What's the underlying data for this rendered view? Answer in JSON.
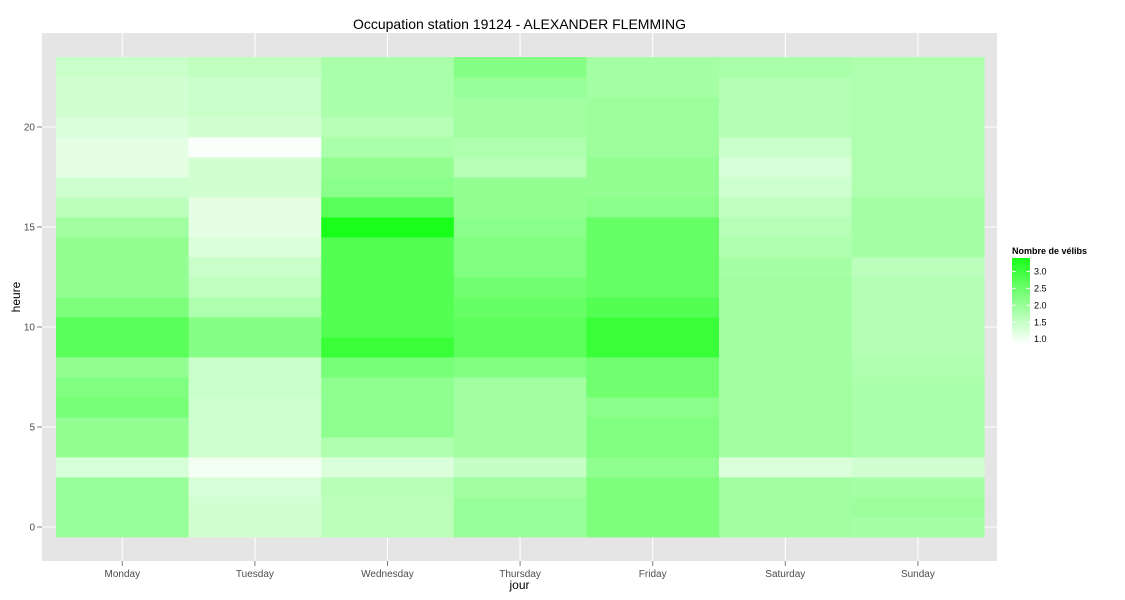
{
  "chart_data": {
    "type": "heatmap",
    "title": "Occupation station 19124 - ALEXANDER FLEMMING",
    "xlabel": "jour",
    "ylabel": "heure",
    "x_categories": [
      "Monday",
      "Tuesday",
      "Wednesday",
      "Thursday",
      "Friday",
      "Saturday",
      "Sunday"
    ],
    "y_hours": [
      0,
      1,
      2,
      3,
      4,
      5,
      6,
      7,
      8,
      9,
      10,
      11,
      12,
      13,
      14,
      15,
      16,
      17,
      18,
      19,
      20,
      21,
      22,
      23
    ],
    "y_ticks": [
      0,
      5,
      10,
      15,
      20
    ],
    "ylim": [
      -0.5,
      23.5
    ],
    "grid": true,
    "color_scale": {
      "low": "#ffffff",
      "high": "#1aff1a",
      "min": 0.85,
      "max": 3.4
    },
    "legend": {
      "title": "Nombre de vélibs",
      "position": "right",
      "ticks": [
        1.0,
        1.5,
        2.0,
        2.5,
        3.0
      ],
      "tick_labels": [
        "1.0",
        "1.5",
        "2.0",
        "2.5",
        "3.0"
      ]
    },
    "values": [
      [
        2.0,
        1.35,
        1.6,
        2.0,
        2.3,
        1.9,
        1.85
      ],
      [
        2.0,
        1.35,
        1.6,
        2.0,
        2.3,
        1.9,
        1.95
      ],
      [
        2.0,
        1.3,
        1.65,
        1.9,
        2.3,
        1.9,
        1.85
      ],
      [
        1.3,
        1.0,
        1.25,
        1.5,
        2.1,
        1.25,
        1.35
      ],
      [
        2.05,
        1.4,
        1.75,
        1.9,
        2.25,
        1.9,
        1.8
      ],
      [
        2.05,
        1.4,
        2.1,
        1.9,
        2.25,
        1.9,
        1.8
      ],
      [
        2.35,
        1.4,
        2.1,
        1.9,
        2.15,
        1.9,
        1.8
      ],
      [
        2.25,
        1.45,
        2.1,
        1.9,
        2.45,
        1.9,
        1.8
      ],
      [
        2.05,
        1.45,
        2.35,
        2.25,
        2.45,
        1.9,
        1.75
      ],
      [
        2.7,
        2.2,
        3.05,
        2.65,
        3.05,
        1.9,
        1.7
      ],
      [
        2.7,
        2.2,
        2.75,
        2.65,
        3.05,
        1.9,
        1.7
      ],
      [
        2.3,
        1.75,
        2.75,
        2.55,
        2.75,
        1.9,
        1.7
      ],
      [
        2.05,
        1.55,
        2.75,
        2.45,
        2.55,
        1.9,
        1.7
      ],
      [
        2.05,
        1.45,
        2.75,
        2.25,
        2.55,
        1.85,
        1.6
      ],
      [
        2.05,
        1.25,
        2.75,
        2.25,
        2.55,
        1.75,
        1.85
      ],
      [
        1.9,
        1.15,
        3.4,
        2.15,
        2.55,
        1.65,
        1.85
      ],
      [
        1.6,
        1.15,
        2.7,
        2.05,
        2.15,
        1.55,
        1.85
      ],
      [
        1.4,
        1.35,
        2.15,
        2.05,
        2.05,
        1.4,
        1.75
      ],
      [
        1.15,
        1.35,
        2.05,
        1.65,
        2.05,
        1.3,
        1.75
      ],
      [
        1.15,
        0.9,
        1.8,
        1.75,
        1.95,
        1.45,
        1.75
      ],
      [
        1.25,
        1.35,
        1.65,
        1.9,
        1.95,
        1.7,
        1.75
      ],
      [
        1.35,
        1.45,
        1.8,
        1.9,
        1.95,
        1.7,
        1.75
      ],
      [
        1.35,
        1.45,
        1.8,
        2.0,
        1.85,
        1.7,
        1.75
      ],
      [
        1.45,
        1.55,
        1.8,
        2.2,
        1.85,
        1.8,
        1.75
      ]
    ]
  }
}
